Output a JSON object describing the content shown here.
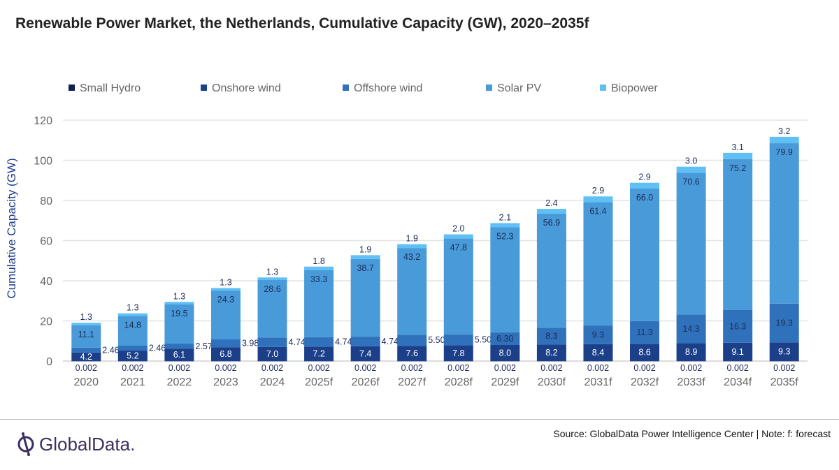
{
  "chart_data": {
    "type": "bar",
    "stacked": true,
    "title": "Renewable Power Market, the Netherlands, Cumulative Capacity (GW), 2020–2035f",
    "ylabel": "Cumulative Capacity (GW)",
    "xlabel": "",
    "ylim": [
      0,
      120
    ],
    "yticks": [
      0,
      20,
      40,
      60,
      80,
      100,
      120
    ],
    "grid": true,
    "legend_position": "top",
    "categories": [
      "2020",
      "2021",
      "2022",
      "2023",
      "2024",
      "2025f",
      "2026f",
      "2027f",
      "2028f",
      "2029f",
      "2030f",
      "2031f",
      "2032f",
      "2033f",
      "2034f",
      "2035f"
    ],
    "series": [
      {
        "name": "Small Hydro",
        "color": "#0f2150",
        "values": [
          0.002,
          0.002,
          0.002,
          0.002,
          0.002,
          0.002,
          0.002,
          0.002,
          0.002,
          0.002,
          0.002,
          0.002,
          0.002,
          0.002,
          0.002,
          0.002
        ],
        "labels": [
          "0.002",
          "0.002",
          "0.002",
          "0.002",
          "0.002",
          "0.002",
          "0.002",
          "0.002",
          "0.002",
          "0.002",
          "0.002",
          "0.002",
          "0.002",
          "0.002",
          "0.002",
          "0.002"
        ]
      },
      {
        "name": "Onshore wind",
        "color": "#1c3f8a",
        "values": [
          4.2,
          5.2,
          6.1,
          6.8,
          7.0,
          7.2,
          7.4,
          7.6,
          7.8,
          8.0,
          8.2,
          8.4,
          8.6,
          8.9,
          9.1,
          9.3
        ],
        "labels": [
          "4.2",
          "5.2",
          "6.1",
          "6.8",
          "7.0",
          "7.2",
          "7.4",
          "7.6",
          "7.8",
          "8.0",
          "8.2",
          "8.4",
          "8.6",
          "8.9",
          "9.1",
          "9.3"
        ]
      },
      {
        "name": "Offshore wind",
        "color": "#2f72bb",
        "values": [
          2.46,
          2.46,
          2.57,
          3.98,
          4.74,
          4.74,
          4.74,
          5.5,
          5.5,
          6.3,
          8.3,
          9.3,
          11.3,
          14.3,
          16.3,
          19.3
        ],
        "labels": [
          "2.46",
          "2.46",
          "2.57",
          "3.98",
          "4.74",
          "4.74",
          "4.74",
          "5.50",
          "5.50",
          "6.30",
          "8.3",
          "9.3",
          "11.3",
          "14.3",
          "16.3",
          "19.3"
        ]
      },
      {
        "name": "Solar PV",
        "color": "#489ad8",
        "values": [
          11.1,
          14.8,
          19.5,
          24.3,
          28.6,
          33.3,
          38.7,
          43.2,
          47.8,
          52.3,
          56.9,
          61.4,
          66.0,
          70.6,
          75.2,
          79.9
        ],
        "labels": [
          "11.1",
          "14.8",
          "19.5",
          "24.3",
          "28.6",
          "33.3",
          "38.7",
          "43.2",
          "47.8",
          "52.3",
          "56.9",
          "61.4",
          "66.0",
          "70.6",
          "75.2",
          "79.9"
        ]
      },
      {
        "name": "Biopower",
        "color": "#60c0f4",
        "values": [
          1.3,
          1.3,
          1.3,
          1.3,
          1.3,
          1.8,
          1.9,
          1.9,
          2.0,
          2.1,
          2.4,
          2.9,
          2.9,
          3.0,
          3.1,
          3.2
        ],
        "labels": [
          "1.3",
          "1.3",
          "1.3",
          "1.3",
          "1.3",
          "1.8",
          "1.9",
          "1.9",
          "2.0",
          "2.1",
          "2.4",
          "2.9",
          "2.9",
          "3.0",
          "3.1",
          "3.2"
        ]
      }
    ]
  },
  "footer": {
    "source": "Source: GlobalData Power Intelligence Center | Note: f: forecast",
    "logo_text": "GlobalData."
  }
}
